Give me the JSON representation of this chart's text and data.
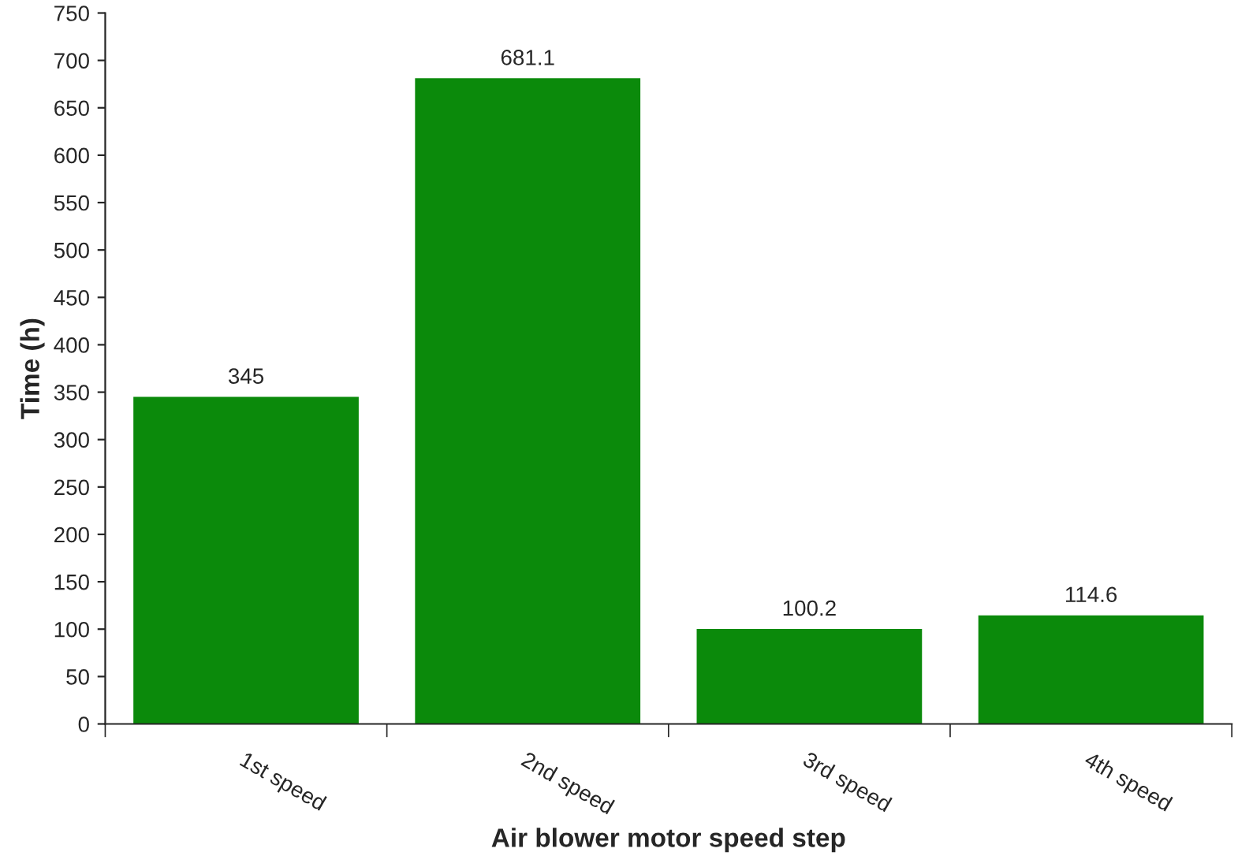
{
  "chart_data": {
    "type": "bar",
    "xlabel": "Air blower motor speed step",
    "ylabel": "Time (h)",
    "categories": [
      "1st speed",
      "2nd speed",
      "3rd speed",
      "4th speed"
    ],
    "values": [
      345,
      681.1,
      100.2,
      114.6
    ],
    "color": "#0b8a0b",
    "ylim": [
      0,
      750
    ],
    "yticks": [
      0,
      50,
      100,
      150,
      200,
      250,
      300,
      350,
      400,
      450,
      500,
      550,
      600,
      650,
      700,
      750
    ],
    "data_labels": true,
    "grid": false,
    "legend": false
  }
}
